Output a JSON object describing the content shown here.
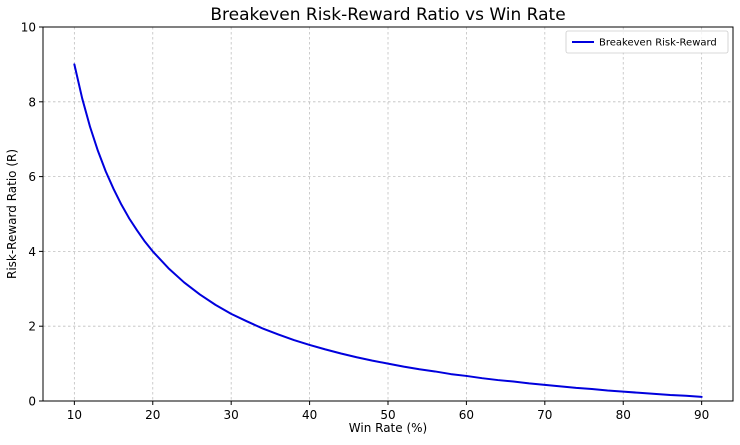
{
  "chart_data": {
    "type": "line",
    "title": "Breakeven Risk-Reward Ratio vs Win Rate",
    "xlabel": "Win Rate (%)",
    "ylabel": "Risk-Reward Ratio (R)",
    "xlim": [
      6,
      94
    ],
    "ylim": [
      0,
      10
    ],
    "xticks": [
      10,
      20,
      30,
      40,
      50,
      60,
      70,
      80,
      90
    ],
    "yticks": [
      0,
      2,
      4,
      6,
      8,
      10
    ],
    "grid": true,
    "legend": {
      "position": "top-right",
      "entries": [
        "Breakeven Risk-Reward"
      ]
    },
    "series": [
      {
        "name": "Breakeven Risk-Reward",
        "color": "#0000dd",
        "x": [
          10,
          11,
          12,
          13,
          14,
          15,
          16,
          17,
          18,
          19,
          20,
          22,
          24,
          26,
          28,
          30,
          32,
          34,
          36,
          38,
          40,
          42,
          44,
          46,
          48,
          50,
          52,
          54,
          56,
          58,
          60,
          62,
          64,
          66,
          68,
          70,
          72,
          74,
          76,
          78,
          80,
          82,
          84,
          86,
          88,
          90
        ],
        "y": [
          9.0,
          8.09,
          7.33,
          6.69,
          6.14,
          5.67,
          5.25,
          4.88,
          4.56,
          4.26,
          4.0,
          3.55,
          3.17,
          2.85,
          2.57,
          2.33,
          2.13,
          1.94,
          1.78,
          1.63,
          1.5,
          1.38,
          1.27,
          1.17,
          1.08,
          1.0,
          0.92,
          0.85,
          0.79,
          0.72,
          0.67,
          0.61,
          0.56,
          0.52,
          0.47,
          0.43,
          0.39,
          0.35,
          0.32,
          0.28,
          0.25,
          0.22,
          0.19,
          0.16,
          0.14,
          0.11
        ]
      }
    ]
  }
}
